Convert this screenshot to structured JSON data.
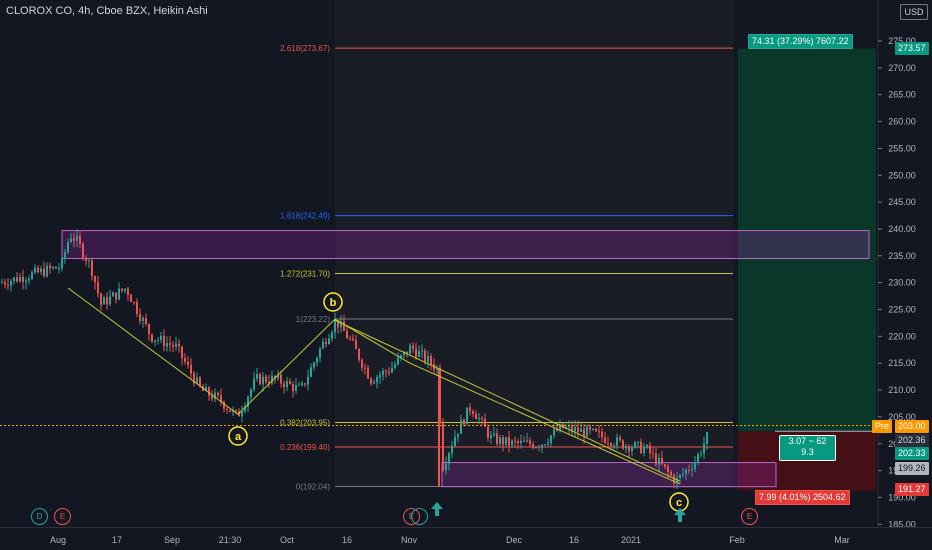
{
  "header": {
    "title": "CLOROX CO, 4h, Cboe BZX, Heikin Ashi",
    "currency": "USD"
  },
  "chart_data": {
    "type": "candlestick",
    "y_range": [
      185,
      278
    ],
    "y_ticks": [
      185,
      190,
      195,
      200,
      205,
      210,
      215,
      220,
      225,
      230,
      235,
      240,
      245,
      250,
      255,
      260,
      265,
      270,
      275
    ],
    "x_labels": [
      "Aug",
      "17",
      "Sep",
      "21:30",
      "Oct",
      "16",
      "Nov",
      "Dec",
      "16",
      "2021",
      "Feb",
      "Mar"
    ],
    "price_path": [
      [
        0,
        230
      ],
      [
        60,
        233
      ],
      [
        69,
        239
      ],
      [
        75,
        238
      ],
      [
        90,
        233
      ],
      [
        100,
        226
      ],
      [
        125,
        229
      ],
      [
        150,
        220
      ],
      [
        175,
        218
      ],
      [
        200,
        210
      ],
      [
        220,
        208
      ],
      [
        236,
        205
      ],
      [
        255,
        212
      ],
      [
        275,
        212
      ],
      [
        300,
        210
      ],
      [
        320,
        218
      ],
      [
        335,
        223
      ],
      [
        350,
        219
      ],
      [
        370,
        212
      ],
      [
        390,
        214
      ],
      [
        410,
        218
      ],
      [
        430,
        215
      ],
      [
        436,
        214
      ],
      [
        442,
        196
      ],
      [
        455,
        202
      ],
      [
        470,
        207
      ],
      [
        490,
        201
      ],
      [
        510,
        200
      ],
      [
        540,
        200
      ],
      [
        560,
        203
      ],
      [
        590,
        202
      ],
      [
        620,
        200
      ],
      [
        645,
        199
      ],
      [
        660,
        196
      ],
      [
        675,
        193
      ],
      [
        695,
        197
      ],
      [
        708,
        202
      ]
    ],
    "wave_labels": [
      "a",
      "b",
      "c"
    ],
    "fib_levels": [
      {
        "label": "2.618(273.67)",
        "value": 273.67,
        "color": "#ef5350"
      },
      {
        "label": "1.618(242.49)",
        "value": 242.49,
        "color": "#2962ff"
      },
      {
        "label": "1.272(231.70)",
        "value": 231.7,
        "color": "#c0ca33"
      },
      {
        "label": "1(223.22)",
        "value": 223.22,
        "color": "#787b86"
      },
      {
        "label": "0.382(203.95)",
        "value": 203.95,
        "color": "#c0ca33"
      },
      {
        "label": "0.236(199.40)",
        "value": 199.4,
        "color": "#ef5350"
      },
      {
        "label": "0(192.04)",
        "value": 192.04,
        "color": "#787b86"
      }
    ],
    "zones": [
      {
        "name": "resistance",
        "from": 234.5,
        "to": 239.7
      },
      {
        "name": "support",
        "from": 192.0,
        "to": 196.5
      }
    ],
    "position": {
      "entry": 202.33,
      "target": 273.57,
      "stop": 191.27
    }
  },
  "price_labels": {
    "target": "273.57",
    "pre": "203.00",
    "pre_tag": "Pre",
    "ref": "202.36",
    "entry": "202.33",
    "low": "199.26",
    "stop": "191.27"
  },
  "position_boxes": {
    "profit": "74.31 (37.29%) 7607.22",
    "risk_reward_1": "3.07 ~ 62",
    "risk_reward_2": "9.3",
    "loss": "7.99 (4.01%) 2504.62"
  },
  "events": [
    "D",
    "E",
    "E",
    "E"
  ],
  "colors": {
    "up": "#26a69a",
    "down": "#ef5350",
    "bg": "#131722",
    "fib": "#c0ca33"
  }
}
